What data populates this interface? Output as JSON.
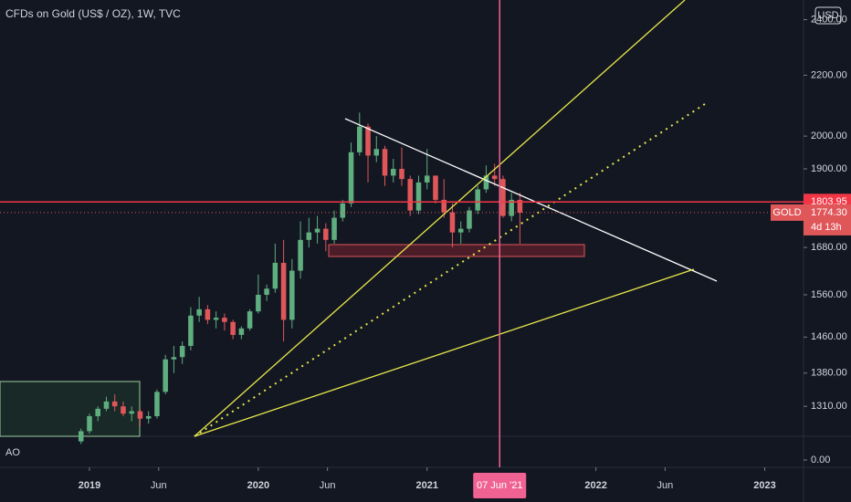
{
  "chart_data": {
    "type": "candlestick",
    "title": "CFDs on Gold (US$ / OZ), 1W, TVC",
    "currency": "USD",
    "log_scale": true,
    "up_color": "#5fae7f",
    "down_color": "#e0575a",
    "x": [
      2018.95,
      2019.0,
      2019.05,
      2019.1,
      2019.15,
      2019.2,
      2019.25,
      2019.3,
      2019.35,
      2019.4,
      2019.45,
      2019.5,
      2019.55,
      2019.6,
      2019.65,
      2019.7,
      2019.75,
      2019.8,
      2019.85,
      2019.9,
      2019.95,
      2020.0,
      2020.05,
      2020.1,
      2020.15,
      2020.2,
      2020.25,
      2020.3,
      2020.35,
      2020.4,
      2020.45,
      2020.5,
      2020.55,
      2020.6,
      2020.65,
      2020.7,
      2020.75,
      2020.8,
      2020.85,
      2020.9,
      2020.95,
      2021.0,
      2021.05,
      2021.1,
      2021.15,
      2021.2,
      2021.25,
      2021.3,
      2021.35,
      2021.4,
      2021.45,
      2021.5,
      2021.55
    ],
    "open": [
      1240,
      1260,
      1290,
      1305,
      1320,
      1310,
      1295,
      1300,
      1285,
      1290,
      1340,
      1410,
      1415,
      1440,
      1510,
      1525,
      1500,
      1505,
      1495,
      1465,
      1480,
      1520,
      1560,
      1575,
      1640,
      1500,
      1620,
      1700,
      1720,
      1730,
      1700,
      1760,
      1800,
      1950,
      2030,
      1940,
      1960,
      1880,
      1900,
      1870,
      1780,
      1860,
      1880,
      1810,
      1775,
      1720,
      1730,
      1780,
      1840,
      1880,
      1870,
      1765,
      1810
    ],
    "high": [
      1265,
      1295,
      1310,
      1330,
      1335,
      1320,
      1310,
      1305,
      1300,
      1345,
      1420,
      1440,
      1450,
      1530,
      1555,
      1535,
      1520,
      1515,
      1500,
      1485,
      1525,
      1610,
      1585,
      1690,
      1700,
      1650,
      1750,
      1760,
      1765,
      1745,
      1780,
      1810,
      1980,
      2075,
      2040,
      2000,
      1970,
      1930,
      1965,
      1880,
      1880,
      1960,
      1880,
      1870,
      1800,
      1750,
      1790,
      1850,
      1910,
      1915,
      1880,
      1830,
      1830
    ],
    "low": [
      1235,
      1255,
      1280,
      1300,
      1300,
      1290,
      1280,
      1270,
      1275,
      1285,
      1335,
      1380,
      1400,
      1430,
      1495,
      1490,
      1480,
      1475,
      1455,
      1455,
      1475,
      1515,
      1545,
      1565,
      1450,
      1480,
      1600,
      1680,
      1690,
      1670,
      1690,
      1750,
      1790,
      1940,
      1860,
      1920,
      1850,
      1860,
      1850,
      1765,
      1770,
      1840,
      1800,
      1760,
      1680,
      1690,
      1720,
      1770,
      1830,
      1850,
      1760,
      1750,
      1690
    ],
    "close": [
      1260,
      1290,
      1305,
      1320,
      1310,
      1295,
      1300,
      1285,
      1290,
      1340,
      1410,
      1415,
      1440,
      1510,
      1525,
      1500,
      1505,
      1495,
      1465,
      1480,
      1520,
      1560,
      1575,
      1640,
      1500,
      1620,
      1700,
      1720,
      1730,
      1700,
      1760,
      1800,
      1950,
      2030,
      1940,
      1960,
      1880,
      1900,
      1870,
      1780,
      1860,
      1880,
      1810,
      1775,
      1720,
      1730,
      1780,
      1840,
      1880,
      1870,
      1765,
      1810,
      1774.3
    ],
    "xlim": [
      2018.47,
      2023.23
    ],
    "ylim": [
      1250,
      2475
    ],
    "xticks": [
      2019,
      {
        "value": 2019.41,
        "label": "Jun"
      },
      2020,
      {
        "value": 2020.41,
        "label": "Jun"
      },
      2021,
      2022,
      {
        "value": 2022.41,
        "label": "Jun"
      },
      2023
    ],
    "yticks": [
      {
        "value": 2400,
        "label": "2400.00"
      },
      {
        "value": 2200,
        "label": "2200.00"
      },
      {
        "value": 2000,
        "label": "2000.00"
      },
      {
        "value": 1900,
        "label": "1900.00"
      },
      {
        "value": 1680,
        "label": "1680.00"
      },
      {
        "value": 1560,
        "label": "1560.00"
      },
      {
        "value": 1460,
        "label": "1460.00"
      },
      {
        "value": 1380,
        "label": "1380.00"
      },
      {
        "value": 1310,
        "label": "1310.00"
      }
    ],
    "horizontal_line": {
      "value": 1803.95,
      "color": "#f23645"
    },
    "last_price": {
      "name": "GOLD",
      "value": 1774.3,
      "label": "1774.30",
      "countdown": "4d 13h"
    },
    "crosshair": {
      "x": 2021.43,
      "label": "07 Jun '21"
    },
    "indicator": {
      "name": "AO",
      "tick": {
        "value": 0,
        "label": "0.00"
      }
    }
  }
}
